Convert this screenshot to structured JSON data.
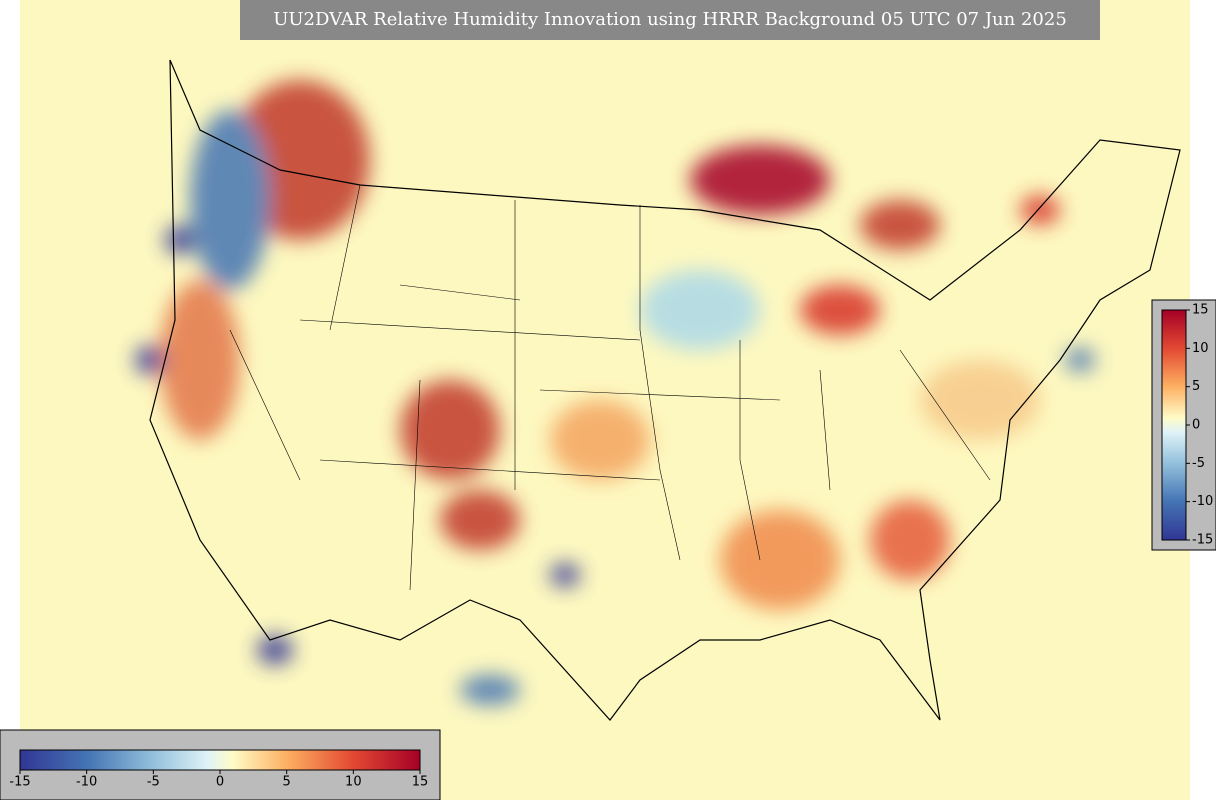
{
  "title": "UU2DVAR Relative Humidity Innovation using HRRR Background 05 UTC 07 Jun 2025",
  "colorbar_horizontal": {
    "lim": [
      -15,
      15
    ],
    "ticks": [
      -15,
      -10,
      -5,
      0,
      5,
      10,
      15
    ]
  },
  "colorbar_vertical": {
    "lim": [
      -15,
      15
    ],
    "ticks": [
      15,
      10,
      5,
      0,
      -5,
      -10,
      -15
    ]
  }
}
